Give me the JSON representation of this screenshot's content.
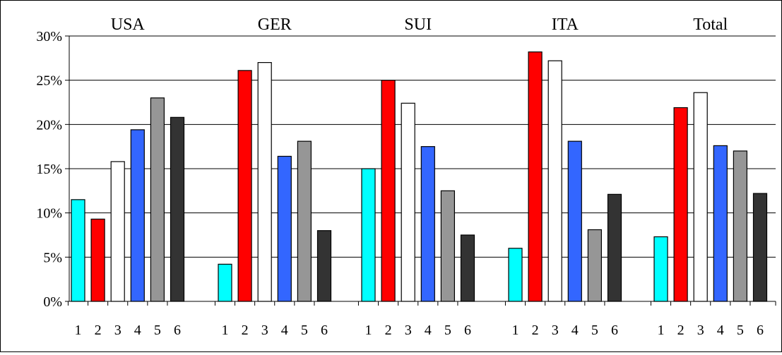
{
  "chart_data": {
    "type": "bar",
    "groups": [
      "USA",
      "GER",
      "SUI",
      "ITA",
      "Total"
    ],
    "categories": [
      "1",
      "2",
      "3",
      "4",
      "5",
      "6"
    ],
    "series": [
      {
        "group": "USA",
        "values": [
          11.5,
          9.3,
          15.8,
          19.4,
          23.0,
          20.8
        ]
      },
      {
        "group": "GER",
        "values": [
          4.2,
          26.1,
          27.0,
          16.4,
          18.1,
          8.0
        ]
      },
      {
        "group": "SUI",
        "values": [
          15.0,
          25.0,
          22.4,
          17.5,
          12.5,
          7.5
        ]
      },
      {
        "group": "ITA",
        "values": [
          6.0,
          28.2,
          27.2,
          18.1,
          8.1,
          12.1
        ]
      },
      {
        "group": "Total",
        "values": [
          7.3,
          21.9,
          23.6,
          17.6,
          17.0,
          12.2
        ]
      }
    ],
    "bar_colors": [
      "#00ffff",
      "#ff0000",
      "#ffffff",
      "#3366ff",
      "#969696",
      "#333333"
    ],
    "ylim": [
      0,
      30
    ],
    "yticks": [
      0,
      5,
      10,
      15,
      20,
      25,
      30
    ],
    "ytick_labels": [
      "0%",
      "5%",
      "10%",
      "15%",
      "20%",
      "25%",
      "30%"
    ],
    "grid": true,
    "title": "",
    "xlabel": "",
    "ylabel": ""
  }
}
